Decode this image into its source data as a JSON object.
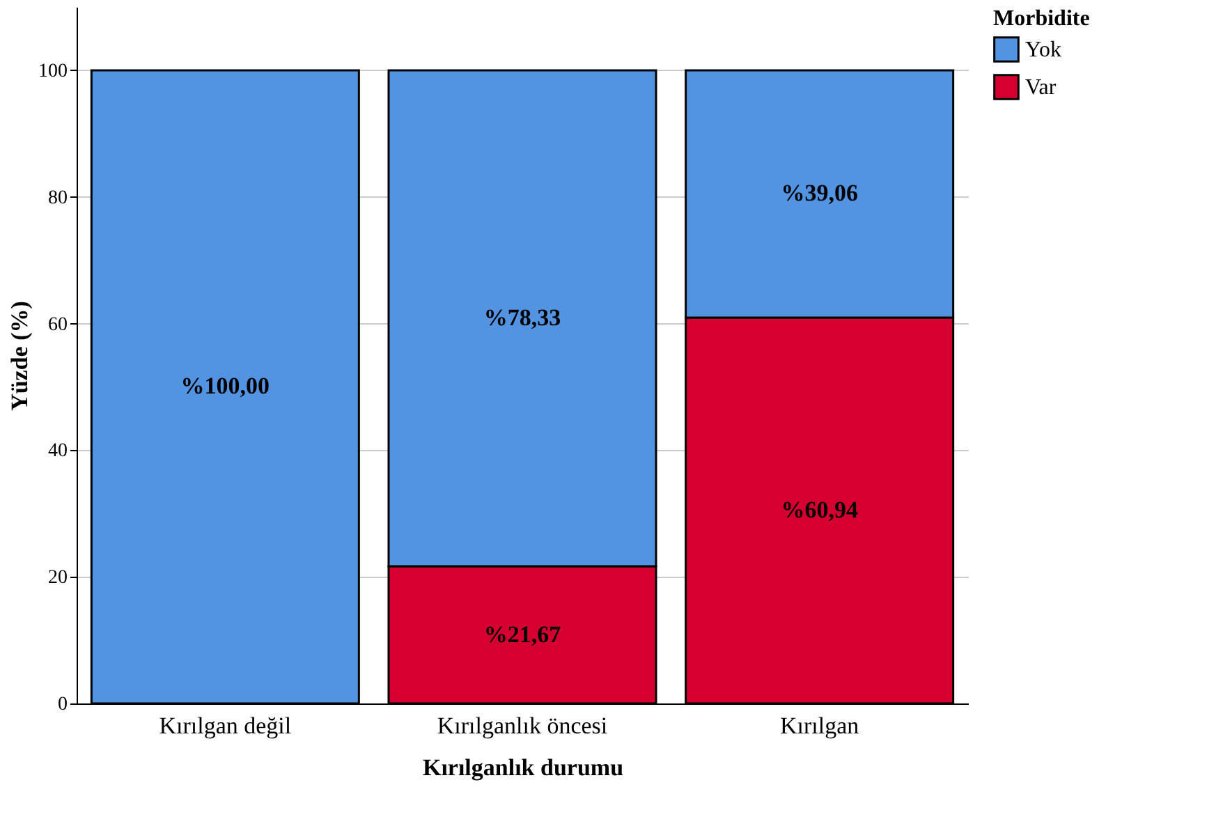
{
  "chart_data": {
    "type": "bar",
    "stacked": true,
    "xlabel": "Kırılganlık durumu",
    "ylabel": "Yüzde (%)",
    "legend_title": "Morbidite",
    "categories": [
      "Kırılgan değil",
      "Kırılganlık öncesi",
      "Kırılgan"
    ],
    "series": [
      {
        "name": "Var",
        "color": "#d5002f",
        "values": [
          null,
          21.67,
          60.94
        ],
        "value_labels": [
          null,
          "%21,67",
          "%60,94"
        ]
      },
      {
        "name": "Yok",
        "color": "#5294e2",
        "values": [
          100,
          78.33,
          39.06
        ],
        "value_labels": [
          "%100,00",
          "%78,33",
          "%39,06"
        ]
      }
    ],
    "ylim": [
      0,
      110
    ],
    "yticks": [
      0,
      20,
      40,
      60,
      80,
      100
    ],
    "grid": "y",
    "legend": "top right"
  }
}
